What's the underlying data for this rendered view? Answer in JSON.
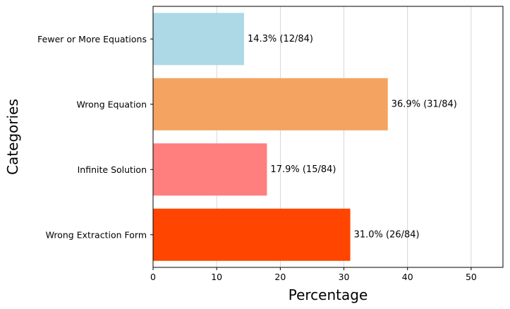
{
  "chart_data": {
    "type": "bar",
    "orientation": "horizontal",
    "title": "",
    "xlabel": "Percentage",
    "ylabel": "Categories",
    "xlim": [
      0,
      55
    ],
    "xticks": [
      0,
      10,
      20,
      30,
      40,
      50
    ],
    "grid": "x",
    "categories": [
      "Wrong Extraction Form",
      "Infinite Solution",
      "Wrong Equation",
      "Fewer or More Equations"
    ],
    "values": [
      31.0,
      17.9,
      36.9,
      14.3
    ],
    "data_labels": [
      "31.0% (26/84)",
      "17.9% (15/84)",
      "36.9% (31/84)",
      "14.3% (12/84)"
    ],
    "colors": [
      "#ff4500",
      "#ff7f7f",
      "#f4a460",
      "#add8e6"
    ]
  }
}
